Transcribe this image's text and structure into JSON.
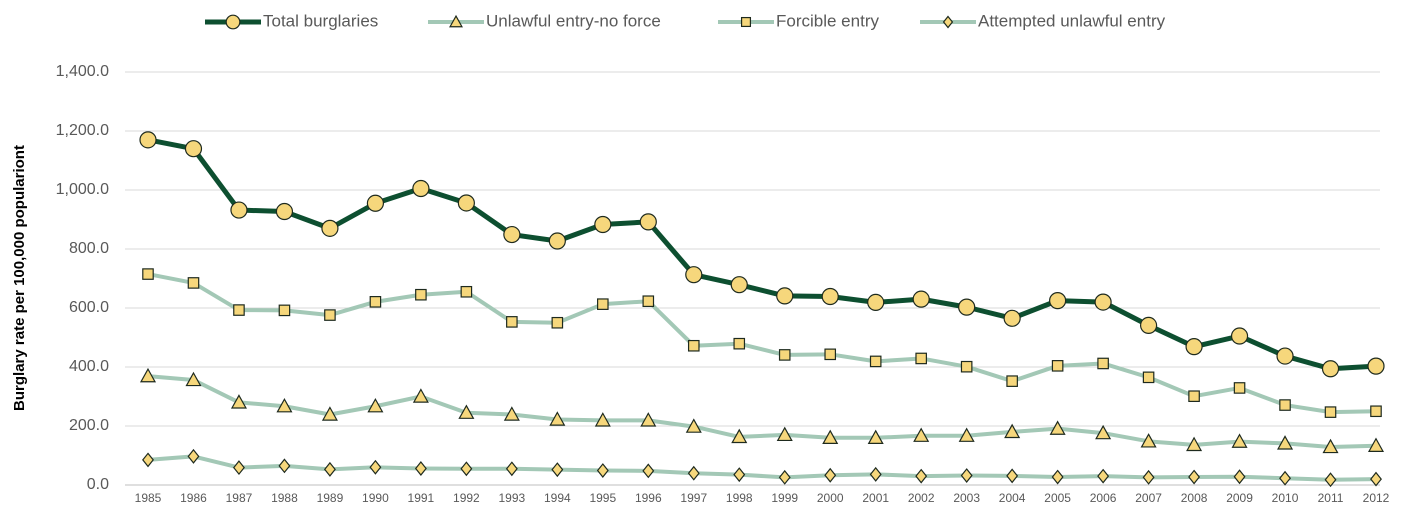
{
  "chart_data": {
    "type": "line",
    "y_label": "Burglary rate per 100,000 populariont",
    "categories": [
      "1985",
      "1986",
      "1987",
      "1988",
      "1989",
      "1990",
      "1991",
      "1992",
      "1993",
      "1994",
      "1995",
      "1996",
      "1997",
      "1998",
      "1999",
      "2000",
      "2001",
      "2002",
      "2003",
      "2004",
      "2005",
      "2006",
      "2007",
      "2008",
      "2009",
      "2010",
      "2011",
      "2012"
    ],
    "series": [
      {
        "name": "Total burglaries",
        "color": "#0d4f30",
        "marker": "circle",
        "values": [
          1170,
          1140,
          932,
          927,
          870,
          955,
          1005,
          956,
          849,
          827,
          883,
          892,
          713,
          679,
          641,
          639,
          619,
          630,
          603,
          565,
          625,
          620,
          541,
          469,
          505,
          437,
          394,
          403
        ]
      },
      {
        "name": "Unlawful entry-no force",
        "color": "#a3c8b6",
        "marker": "triangle",
        "values": [
          369,
          356,
          280,
          267,
          239,
          267,
          300,
          245,
          239,
          222,
          219,
          219,
          198,
          163,
          170,
          160,
          160,
          167,
          167,
          180,
          191,
          176,
          148,
          136,
          147,
          141,
          129,
          133
        ]
      },
      {
        "name": "Forcible entry",
        "color": "#a3c8b6",
        "marker": "square",
        "values": [
          715,
          685,
          593,
          592,
          576,
          621,
          645,
          655,
          553,
          550,
          613,
          623,
          472,
          479,
          441,
          443,
          419,
          429,
          401,
          352,
          404,
          412,
          365,
          301,
          329,
          271,
          247,
          250
        ]
      },
      {
        "name": "Attempted unlawful entry",
        "color": "#a3c8b6",
        "marker": "diamond",
        "values": [
          85,
          97,
          59,
          65,
          53,
          60,
          56,
          55,
          55,
          52,
          49,
          48,
          40,
          35,
          26,
          33,
          36,
          30,
          32,
          31,
          27,
          30,
          26,
          27,
          28,
          23,
          18,
          20
        ]
      }
    ],
    "marker_fill": "#f6d77c",
    "ylim": [
      0,
      1400
    ],
    "yticks": [
      {
        "value": 0,
        "label": "0.0"
      },
      {
        "value": 200,
        "label": "200.0"
      },
      {
        "value": 400,
        "label": "400.0"
      },
      {
        "value": 600,
        "label": "600.0"
      },
      {
        "value": 800,
        "label": "800.0"
      },
      {
        "value": 1000,
        "label": "1,000.0"
      },
      {
        "value": 1200,
        "label": "1,200.0"
      },
      {
        "value": 1400,
        "label": "1,400.0"
      }
    ],
    "grid": true
  }
}
